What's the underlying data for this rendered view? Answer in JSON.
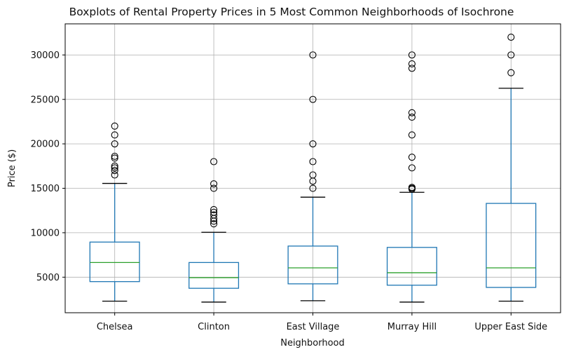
{
  "chart_data": {
    "type": "boxplot",
    "title": "Boxplots of Rental Property Prices in 5 Most Common Neighborhoods of Isochrone",
    "xlabel": "Neighborhood",
    "ylabel": "Price ($)",
    "ylim": [
      1000,
      33500
    ],
    "yticks": [
      5000,
      10000,
      15000,
      20000,
      25000,
      30000
    ],
    "grid": true,
    "categories": [
      "Chelsea",
      "Clinton",
      "East Village",
      "Murray Hill",
      "Upper East Side"
    ],
    "boxes": [
      {
        "name": "Chelsea",
        "whisker_low": 2300,
        "q1": 4500,
        "median": 6650,
        "q3": 8950,
        "whisker_high": 15550,
        "outliers": [
          16500,
          17000,
          17300,
          17500,
          18400,
          18600,
          20000,
          21000,
          22000
        ]
      },
      {
        "name": "Clinton",
        "whisker_low": 2200,
        "q1": 3750,
        "median": 4950,
        "q3": 6650,
        "whisker_high": 10050,
        "outliers": [
          11000,
          11300,
          11600,
          12000,
          12300,
          12600,
          15000,
          15500,
          18000
        ]
      },
      {
        "name": "East Village",
        "whisker_low": 2350,
        "q1": 4250,
        "median": 6050,
        "q3": 8500,
        "whisker_high": 14000,
        "outliers": [
          15000,
          15800,
          16500,
          18000,
          20000,
          25000,
          30000
        ]
      },
      {
        "name": "Murray Hill",
        "whisker_low": 2200,
        "q1": 4100,
        "median": 5500,
        "q3": 8350,
        "whisker_high": 14550,
        "outliers": [
          14900,
          15000,
          15100,
          17300,
          18500,
          21000,
          23000,
          23500,
          28500,
          29000,
          30000
        ]
      },
      {
        "name": "Upper East Side",
        "whisker_low": 2300,
        "q1": 3850,
        "median": 6050,
        "q3": 13300,
        "whisker_high": 26250,
        "outliers": [
          28000,
          30000,
          32000
        ]
      }
    ]
  },
  "colors": {
    "box": "#1f77b4",
    "median": "#2ca02c",
    "grid": "#b0b0b0",
    "outlier": "#000000",
    "cap": "#000000"
  }
}
